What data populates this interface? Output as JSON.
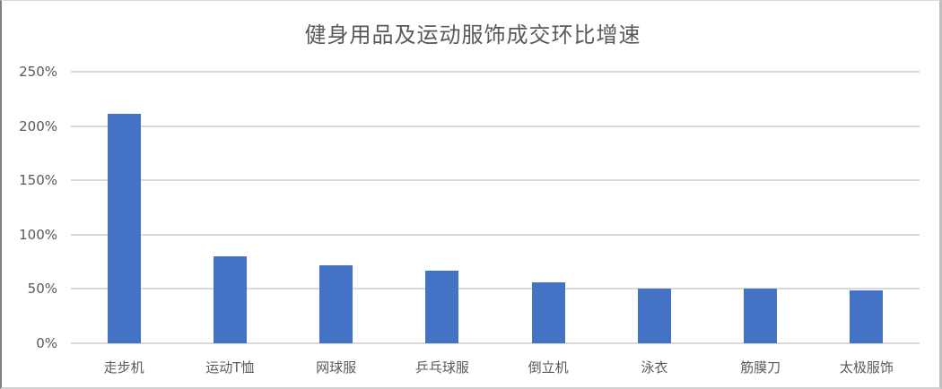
{
  "chart_data": {
    "type": "bar",
    "title": "健身用品及运动服饰成交环比增速",
    "xlabel": "",
    "ylabel": "",
    "categories": [
      "走步机",
      "运动T恤",
      "网球服",
      "乒乓球服",
      "倒立机",
      "泳衣",
      "筋膜刀",
      "太极服饰"
    ],
    "series": [
      {
        "name": "成交环比增速",
        "values": [
          211,
          80,
          72,
          67,
          56,
          50,
          50,
          49
        ],
        "unit": "%"
      }
    ],
    "ylim": [
      0,
      250
    ],
    "yticks": [
      0,
      50,
      100,
      150,
      200,
      250
    ],
    "ytick_labels": [
      "0%",
      "50%",
      "100%",
      "150%",
      "200%",
      "250%"
    ],
    "grid": true,
    "legend": "none",
    "bar_color": "#4472C4"
  },
  "colors": {
    "bar": "#4472C4",
    "grid": "#D9D9D9",
    "text": "#595959"
  }
}
